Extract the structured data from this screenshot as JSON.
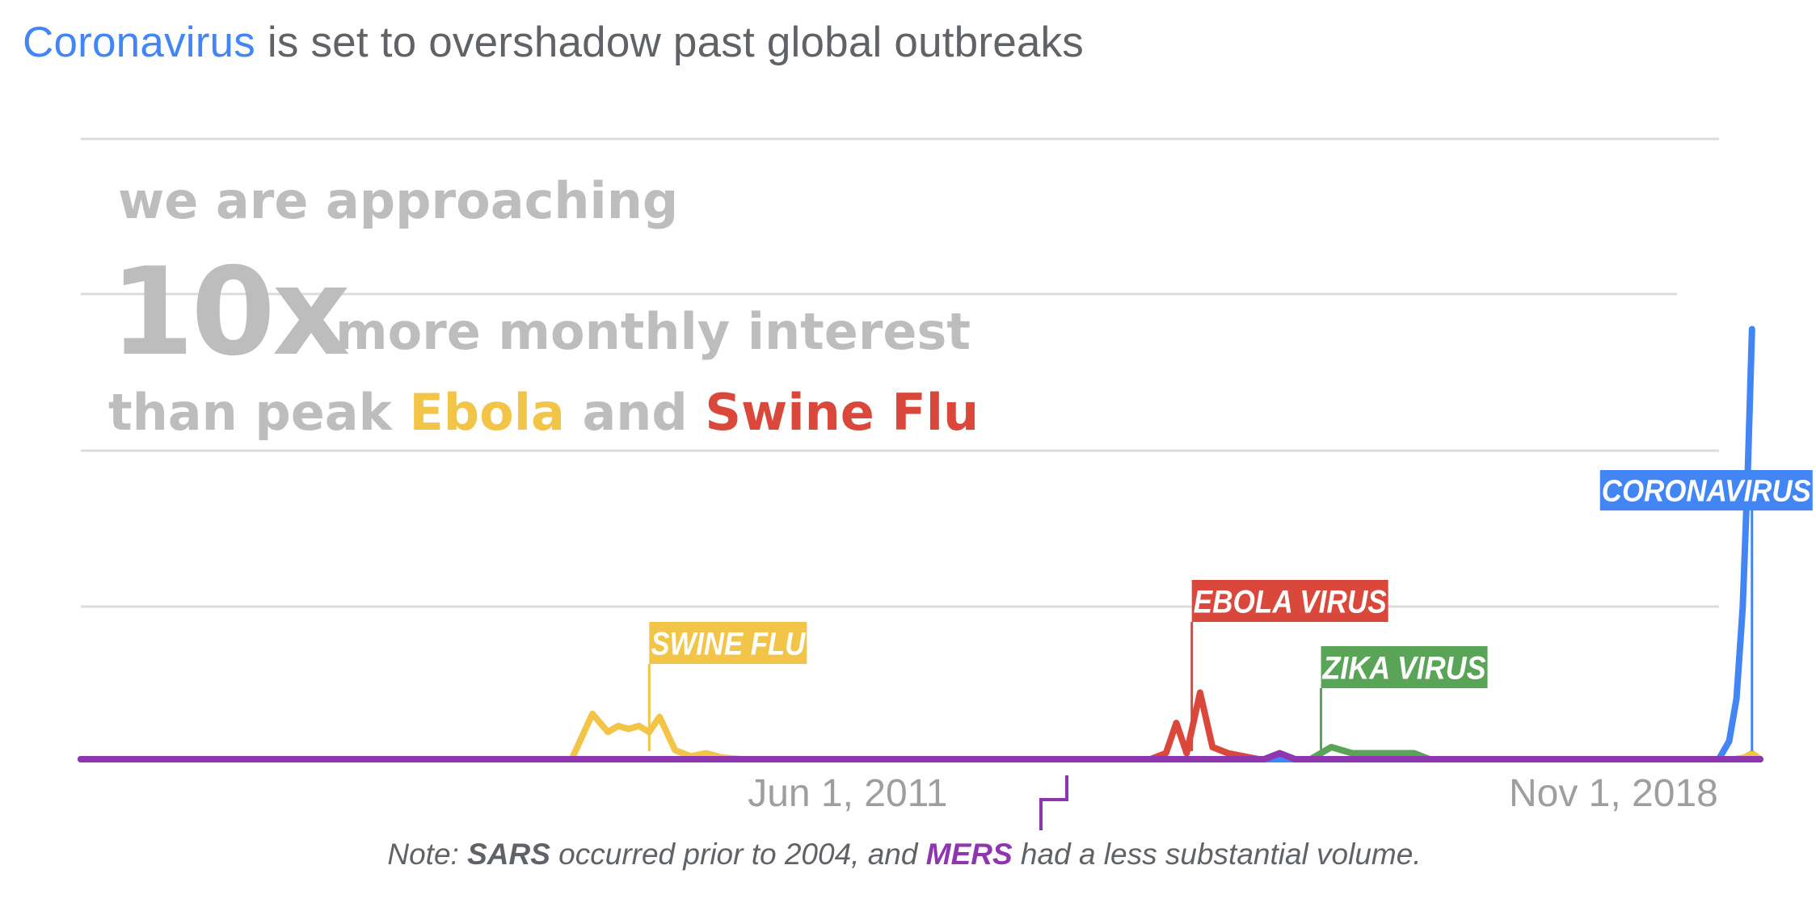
{
  "header": {
    "title_accent": "Coronavirus",
    "title_rest": " is set to overshadow past global outbreaks"
  },
  "overlay": {
    "line1": "we are approaching",
    "multiplier": "10x",
    "line2_rest": "more monthly interest",
    "line3_prefix": "than peak ",
    "ebola_word": "Ebola",
    "and_word": " and ",
    "swineflu_word": "Swine Flu"
  },
  "note": {
    "prefix": "Note: ",
    "sars": "SARS",
    "middle": " occurred prior to 2004, and ",
    "mers": "MERS",
    "suffix": " had a less substantial volume."
  },
  "colors": {
    "coronavirus": "#4285f4",
    "swine_flu": "#f2c548",
    "ebola": "#d9483b",
    "zika": "#5aa457",
    "mers": "#8e35b0",
    "overlay_text": "#bdbdbd",
    "gridline": "#dcdcdc"
  },
  "chart_data": {
    "type": "line",
    "title": "",
    "xlabel": "",
    "ylabel": "",
    "x_range": [
      2004.0,
      2020.25
    ],
    "ylim": [
      0,
      100
    ],
    "x_ticks": [
      {
        "x": 2011.42,
        "label": "Jun 1, 2011"
      },
      {
        "x": 2018.83,
        "label": "Nov 1, 2018"
      }
    ],
    "grid": true,
    "callouts": [
      {
        "series": "Swine Flu",
        "label": "SWINE FLU",
        "x": 2009.5
      },
      {
        "series": "Ebola",
        "label": "EBOLA VIRUS",
        "x": 2014.75
      },
      {
        "series": "Zika",
        "label": "ZIKA VIRUS",
        "x": 2016.0
      },
      {
        "series": "Coronavirus",
        "label": "CORONAVIRUS",
        "x": 2020.17
      }
    ],
    "series": [
      {
        "name": "Swine Flu",
        "color": "#f2c548",
        "points": [
          [
            2004.0,
            0
          ],
          [
            2008.75,
            0
          ],
          [
            2008.95,
            7.5
          ],
          [
            2009.1,
            4.5
          ],
          [
            2009.2,
            5.5
          ],
          [
            2009.3,
            5.0
          ],
          [
            2009.4,
            5.5
          ],
          [
            2009.5,
            4.5
          ],
          [
            2009.6,
            7.0
          ],
          [
            2009.75,
            1.5
          ],
          [
            2009.9,
            0.5
          ],
          [
            2010.05,
            1.0
          ],
          [
            2010.2,
            0.3
          ],
          [
            2010.4,
            0
          ],
          [
            2020.0,
            0
          ],
          [
            2020.1,
            0.3
          ],
          [
            2020.17,
            1.0
          ],
          [
            2020.25,
            0
          ]
        ]
      },
      {
        "name": "Ebola",
        "color": "#d9483b",
        "points": [
          [
            2004.0,
            0
          ],
          [
            2014.35,
            0
          ],
          [
            2014.5,
            1.0
          ],
          [
            2014.6,
            6.0
          ],
          [
            2014.7,
            1.0
          ],
          [
            2014.83,
            11.0
          ],
          [
            2014.95,
            2.0
          ],
          [
            2015.1,
            1.0
          ],
          [
            2015.25,
            0.5
          ],
          [
            2015.4,
            0
          ],
          [
            2020.25,
            0
          ]
        ]
      },
      {
        "name": "Zika",
        "color": "#5aa457",
        "points": [
          [
            2004.0,
            0
          ],
          [
            2015.9,
            0
          ],
          [
            2016.0,
            1.0
          ],
          [
            2016.1,
            2.0
          ],
          [
            2016.3,
            1.0
          ],
          [
            2016.6,
            1.0
          ],
          [
            2016.9,
            1.0
          ],
          [
            2017.05,
            0
          ],
          [
            2020.25,
            0
          ]
        ]
      },
      {
        "name": "Coronavirus",
        "color": "#4285f4",
        "points": [
          [
            2004.0,
            0
          ],
          [
            2019.85,
            0
          ],
          [
            2019.95,
            3.0
          ],
          [
            2020.02,
            10.0
          ],
          [
            2020.08,
            25.0
          ],
          [
            2020.13,
            48.0
          ],
          [
            2020.17,
            71.0
          ]
        ]
      },
      {
        "name": "MERS",
        "color": "#8e35b0",
        "points": [
          [
            2004.0,
            0
          ],
          [
            2015.45,
            0
          ],
          [
            2015.6,
            1.0
          ],
          [
            2015.75,
            0
          ],
          [
            2020.25,
            0
          ]
        ]
      }
    ]
  }
}
